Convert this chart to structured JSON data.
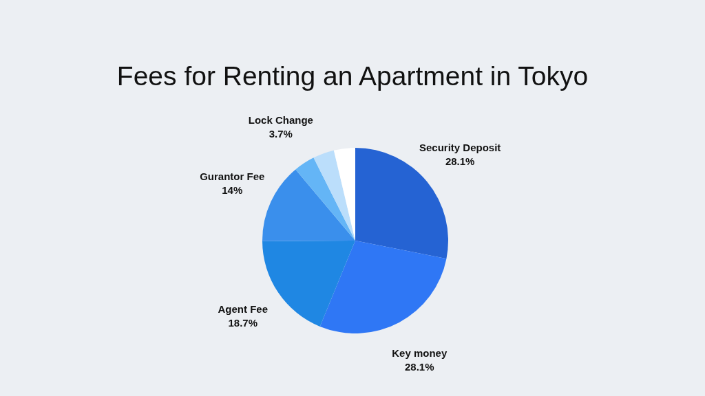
{
  "chart_data": {
    "type": "pie",
    "title": "Fees for Renting an Apartment in Tokyo",
    "categories": [
      "Security Deposit",
      "Key money",
      "Agent Fee",
      "Gurantor Fee",
      "Lock Change",
      null,
      null
    ],
    "values": [
      28.1,
      28.1,
      18.7,
      14,
      3.7,
      3.7,
      3.7
    ],
    "colors": [
      "#2563d3",
      "#2f77f5",
      "#1f87e3",
      "#3a8fec",
      "#64b5f6",
      "#bbdefb",
      "#ffffff"
    ],
    "value_labels": [
      "28.1%",
      "28.1%",
      "18.7%",
      "14%",
      "3.7%",
      null,
      null
    ]
  }
}
